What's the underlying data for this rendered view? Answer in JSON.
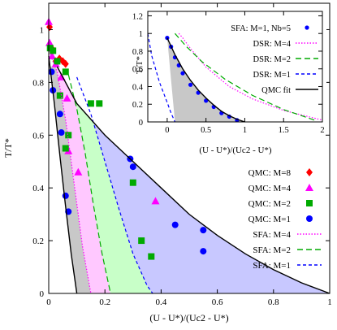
{
  "chart_data": [
    {
      "type": "line",
      "xlabel": "(U - U*)/(Uc2 - U*)",
      "ylabel": "T/T*",
      "xlim": [
        0,
        1
      ],
      "ylim": [
        0,
        1.1
      ],
      "xticks": [
        "0",
        "0.2",
        "0.4",
        "0.6",
        "0.8",
        "1"
      ],
      "yticks": [
        "0",
        "0.2",
        "0.4",
        "0.6",
        "0.8",
        "1"
      ],
      "legend": {
        "placement": "bottom-right",
        "entries": [
          "QMC: M=8",
          "QMC: M=4",
          "QMC: M=2",
          "QMC: M=1",
          "SFA: M=4",
          "SFA: M=2",
          "SFA: M=1"
        ]
      },
      "series": [
        {
          "name": "QMC: M=8",
          "kind": "points",
          "marker": "diamond",
          "color": "#ff0000",
          "x": [
            0.003,
            0.01,
            0.025,
            0.038,
            0.05,
            0.06
          ],
          "y": [
            1.01,
            0.93,
            0.88,
            0.89,
            0.88,
            0.87
          ]
        },
        {
          "name": "QMC: M=4",
          "kind": "points",
          "marker": "triangle",
          "color": "#ff00ff",
          "x": [
            0.0,
            0.003,
            0.012,
            0.025,
            0.045,
            0.065,
            0.07,
            0.105,
            0.38
          ],
          "y": [
            1.03,
            0.95,
            0.9,
            0.87,
            0.82,
            0.74,
            0.54,
            0.46,
            0.35
          ]
        },
        {
          "name": "QMC: M=2",
          "kind": "points",
          "marker": "square",
          "color": "#00aa00",
          "x": [
            0.005,
            0.015,
            0.03,
            0.04,
            0.06,
            0.06,
            0.07,
            0.15,
            0.18,
            0.3,
            0.33,
            0.365
          ],
          "y": [
            0.93,
            0.92,
            0.88,
            0.75,
            0.84,
            0.55,
            0.6,
            0.72,
            0.72,
            0.42,
            0.2,
            0.14
          ]
        },
        {
          "name": "QMC: M=1",
          "kind": "points",
          "marker": "circle",
          "color": "#0000ff",
          "x": [
            0.01,
            0.015,
            0.04,
            0.045,
            0.06,
            0.07,
            0.29,
            0.3,
            0.45,
            0.55,
            0.55
          ],
          "y": [
            0.84,
            0.77,
            0.68,
            0.61,
            0.37,
            0.31,
            0.51,
            0.48,
            0.26,
            0.24,
            0.16
          ]
        },
        {
          "name": "SFA: M=4",
          "kind": "line",
          "style": "dotted",
          "color": "#ff00ff",
          "x": [
            0.0,
            0.03,
            0.06,
            0.09,
            0.12,
            0.15
          ],
          "y": [
            0.92,
            0.84,
            0.66,
            0.42,
            0.18,
            0.0
          ]
        },
        {
          "name": "SFA: M=2",
          "kind": "line",
          "style": "dashed",
          "color": "#00aa00",
          "x": [
            0.07,
            0.1,
            0.13,
            0.16,
            0.19,
            0.22
          ],
          "y": [
            0.83,
            0.7,
            0.53,
            0.33,
            0.15,
            0.0
          ]
        },
        {
          "name": "SFA: M=1",
          "kind": "line",
          "style": "dashed-fine",
          "color": "#0000ff",
          "x": [
            0.1,
            0.15,
            0.2,
            0.25,
            0.3,
            0.35,
            0.37
          ],
          "y": [
            0.82,
            0.68,
            0.5,
            0.32,
            0.15,
            0.03,
            0.0
          ]
        },
        {
          "name": "",
          "kind": "line",
          "style": "solid",
          "color": "#000000",
          "x": [
            0.0,
            0.02,
            0.04,
            0.06,
            0.08,
            0.1
          ],
          "y": [
            0.9,
            0.72,
            0.52,
            0.33,
            0.15,
            0.0
          ]
        },
        {
          "name": "",
          "kind": "line",
          "style": "solid",
          "color": "#000000",
          "x": [
            0.03,
            0.1,
            0.2,
            0.3,
            0.4,
            0.5,
            0.6,
            0.7,
            0.8,
            0.9,
            1.0
          ],
          "y": [
            0.86,
            0.72,
            0.6,
            0.5,
            0.4,
            0.3,
            0.22,
            0.15,
            0.09,
            0.04,
            0.0
          ]
        }
      ],
      "fills": [
        {
          "color": "#c8c8c8",
          "right_edge": "SFA: M=4 area start"
        },
        {
          "color": "#ffc8ff"
        },
        {
          "color": "#c8ffc8"
        },
        {
          "color": "#c8c8ff"
        }
      ]
    },
    {
      "type": "line",
      "xlabel": "(U - U*)/(Uc2 - U*)",
      "ylabel": "T/T*",
      "xlim": [
        -0.25,
        2
      ],
      "ylim": [
        0,
        1.25
      ],
      "xticks": [
        "0",
        "0.5",
        "1",
        "1.5",
        "2"
      ],
      "yticks": [
        "0",
        "0.2",
        "0.4",
        "0.6",
        "0.8",
        "1",
        "1.2"
      ],
      "legend": {
        "placement": "top-right",
        "entries": [
          "SFA: M=1, Nb=5",
          "DSR: M=4",
          "DSR: M=2",
          "DSR: M=1",
          "QMC fit"
        ]
      },
      "series": [
        {
          "name": "SFA: M=1, Nb=5",
          "kind": "points",
          "marker": "circle",
          "color": "#0000ff",
          "x": [
            0.0,
            0.05,
            0.1,
            0.15,
            0.2,
            0.3,
            0.4,
            0.5,
            0.6,
            0.7,
            0.8,
            0.9
          ],
          "y": [
            0.95,
            0.85,
            0.73,
            0.64,
            0.55,
            0.42,
            0.33,
            0.24,
            0.17,
            0.1,
            0.06,
            0.02
          ]
        },
        {
          "name": "DSR: M=4",
          "kind": "line",
          "style": "dotted",
          "color": "#ff00ff",
          "x": [
            0.15,
            0.2,
            0.3,
            0.5,
            0.8,
            1.1,
            1.5,
            2.0
          ],
          "y": [
            1.0,
            0.95,
            0.83,
            0.62,
            0.4,
            0.26,
            0.13,
            0.02
          ]
        },
        {
          "name": "DSR: M=2",
          "kind": "line",
          "style": "dashed",
          "color": "#00aa00",
          "x": [
            0.1,
            0.15,
            0.25,
            0.45,
            0.75,
            1.1,
            1.5,
            1.9
          ],
          "y": [
            1.0,
            0.95,
            0.85,
            0.68,
            0.48,
            0.3,
            0.14,
            0.02
          ]
        },
        {
          "name": "DSR: M=1",
          "kind": "line",
          "style": "dashed-fine",
          "color": "#0000ff",
          "x": [
            -0.25,
            -0.2,
            -0.1,
            0.0,
            0.05,
            0.1
          ],
          "y": [
            1.0,
            0.75,
            0.45,
            0.22,
            0.1,
            0.0
          ]
        },
        {
          "name": "QMC fit",
          "kind": "line",
          "style": "solid",
          "color": "#000000",
          "x": [
            0.0,
            0.1,
            0.2,
            0.3,
            0.4,
            0.5,
            0.6,
            0.7,
            0.8,
            0.9,
            1.0
          ],
          "y": [
            0.95,
            0.76,
            0.6,
            0.47,
            0.36,
            0.27,
            0.19,
            0.12,
            0.07,
            0.03,
            0.0
          ]
        }
      ]
    }
  ]
}
